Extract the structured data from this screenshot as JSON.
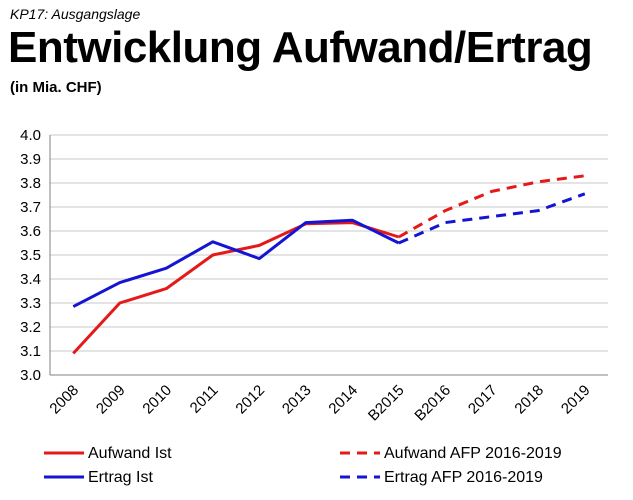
{
  "header": {
    "kicker": "KP17: Ausgangslage",
    "title": "Entwicklung Aufwand/Ertrag",
    "unit": "(in Mia. CHF)"
  },
  "chart_data": {
    "type": "line",
    "categories": [
      "2008",
      "2009",
      "2010",
      "2011",
      "2012",
      "2013",
      "2014",
      "B2015",
      "B2016",
      "2017",
      "2018",
      "2019"
    ],
    "ylim": [
      3.0,
      4.0
    ],
    "yticks": [
      "3.0",
      "3.1",
      "3.2",
      "3.3",
      "3.4",
      "3.5",
      "3.6",
      "3.7",
      "3.8",
      "3.9",
      "4.0"
    ],
    "grid": true,
    "legend_position": "bottom",
    "series": [
      {
        "name": "Aufwand Ist",
        "color": "#e41a1a",
        "dashed": false,
        "values": [
          3.09,
          3.3,
          3.36,
          3.5,
          3.54,
          3.63,
          3.635,
          3.575,
          null,
          null,
          null,
          null
        ]
      },
      {
        "name": "Ertrag Ist",
        "color": "#1414d2",
        "dashed": false,
        "values": [
          3.285,
          3.385,
          3.445,
          3.555,
          3.485,
          3.635,
          3.645,
          3.55,
          null,
          null,
          null,
          null
        ]
      },
      {
        "name": "Aufwand AFP 2016-2019",
        "color": "#e41a1a",
        "dashed": true,
        "values": [
          null,
          null,
          null,
          null,
          null,
          null,
          null,
          3.575,
          3.685,
          3.765,
          3.805,
          3.83
        ]
      },
      {
        "name": "Ertrag AFP 2016-2019",
        "color": "#1414d2",
        "dashed": true,
        "values": [
          null,
          null,
          null,
          null,
          null,
          null,
          null,
          3.55,
          3.635,
          3.66,
          3.685,
          3.755
        ]
      }
    ]
  }
}
